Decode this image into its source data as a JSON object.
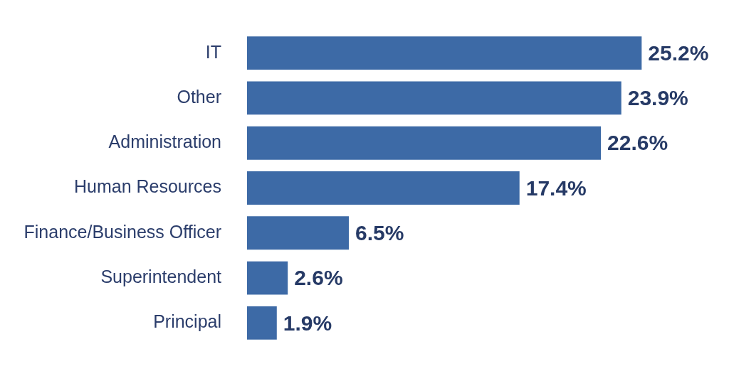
{
  "chart_data": {
    "type": "bar",
    "orientation": "horizontal",
    "categories": [
      "IT",
      "Other",
      "Administration",
      "Human Resources",
      "Finance/Business Officer",
      "Superintendent",
      "Principal"
    ],
    "values": [
      25.2,
      23.9,
      22.6,
      17.4,
      6.5,
      2.6,
      1.9
    ],
    "value_labels": [
      "25.2%",
      "23.9%",
      "22.6%",
      "17.4%",
      "6.5%",
      "2.6%",
      "1.9%"
    ],
    "color": "#3d6aa6"
  }
}
